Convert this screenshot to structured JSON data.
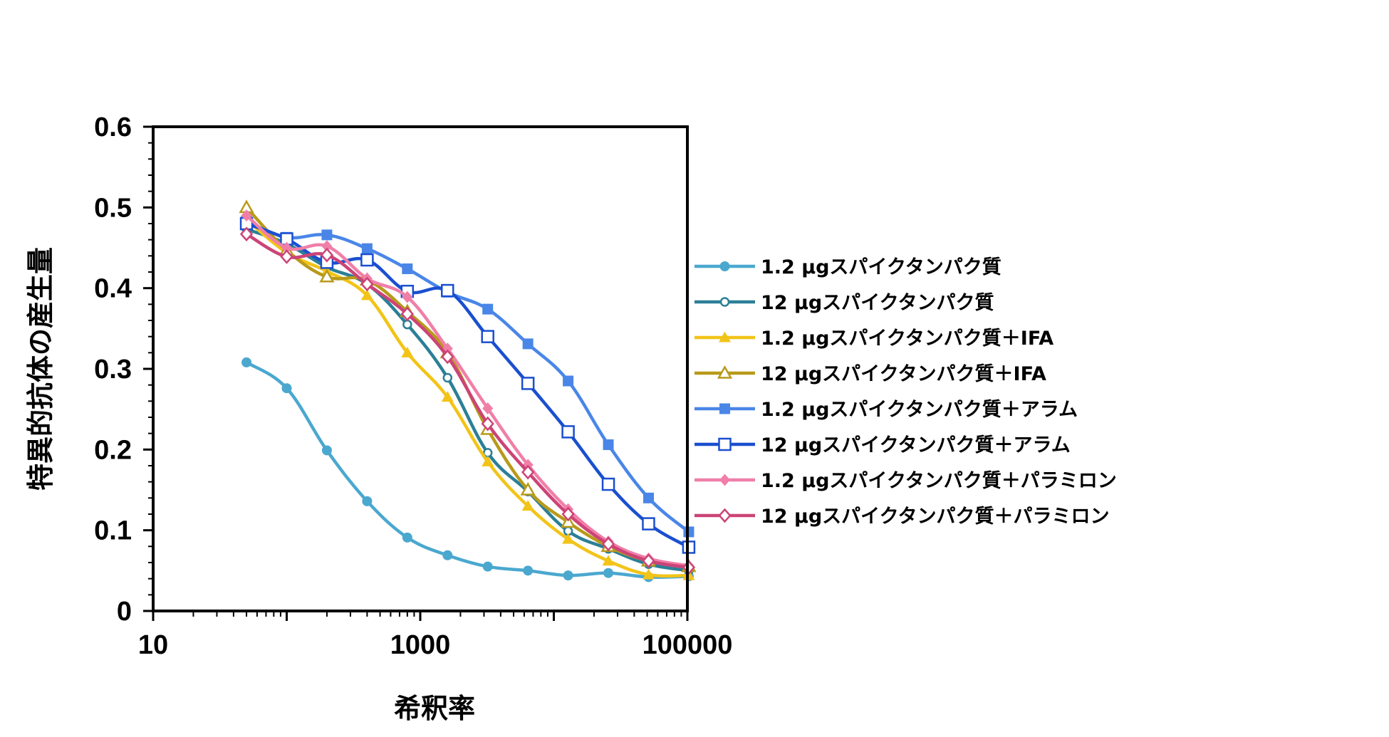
{
  "chart_data": {
    "type": "line",
    "xscale": "log",
    "xlim": [
      10,
      100000
    ],
    "ylim": [
      0,
      0.6
    ],
    "xticks": [
      "10",
      "1000",
      "100000"
    ],
    "yticks": [
      "0",
      "0.1",
      "0.2",
      "0.3",
      "0.4",
      "0.5",
      "0.6"
    ],
    "xlabel": "希釈率",
    "ylabel": "特異的抗体の産生量",
    "legend_position": "right",
    "grid": false,
    "x": [
      50,
      100,
      200,
      400,
      800,
      1600,
      3200,
      6400,
      12800,
      25600,
      51200,
      102400
    ],
    "series": [
      {
        "name": "1.2 µgスパイクタンパク質",
        "color": "#4aa8cf",
        "marker": "circle-filled",
        "values": [
          0.308,
          0.276,
          0.199,
          0.136,
          0.091,
          0.069,
          0.055,
          0.05,
          0.044,
          0.047,
          0.042,
          0.043
        ]
      },
      {
        "name": "12 µgスパイクタンパク質",
        "color": "#2b7f96",
        "marker": "circle-open",
        "values": [
          0.473,
          0.455,
          0.426,
          0.405,
          0.355,
          0.289,
          0.196,
          0.148,
          0.099,
          0.077,
          0.058,
          0.05
        ]
      },
      {
        "name": "1.2 µgスパイクタンパク質＋IFA",
        "color": "#f2c418",
        "marker": "triangle-filled",
        "values": [
          0.485,
          0.444,
          0.421,
          0.391,
          0.32,
          0.265,
          0.185,
          0.13,
          0.089,
          0.062,
          0.045,
          0.044
        ]
      },
      {
        "name": "12 µgスパイクタンパク質＋IFA",
        "color": "#b89a1a",
        "marker": "triangle-open",
        "values": [
          0.5,
          0.447,
          0.414,
          0.41,
          0.371,
          0.32,
          0.225,
          0.15,
          0.11,
          0.08,
          0.062,
          0.055
        ]
      },
      {
        "name": "1.2 µgスパイクタンパク質＋アラム",
        "color": "#4a86e8",
        "marker": "square-filled",
        "values": [
          0.483,
          0.463,
          0.466,
          0.449,
          0.424,
          0.395,
          0.374,
          0.331,
          0.285,
          0.206,
          0.14,
          0.098
        ]
      },
      {
        "name": "12 µgスパイクタンパク質＋アラム",
        "color": "#1a4fcf",
        "marker": "square-open",
        "values": [
          0.48,
          0.461,
          0.432,
          0.435,
          0.396,
          0.397,
          0.34,
          0.282,
          0.222,
          0.157,
          0.108,
          0.079
        ]
      },
      {
        "name": "1.2 µgスパイクタンパク質＋パラミロン",
        "color": "#f07fa8",
        "marker": "diamond-filled",
        "values": [
          0.49,
          0.45,
          0.452,
          0.412,
          0.389,
          0.325,
          0.251,
          0.181,
          0.126,
          0.086,
          0.065,
          0.056
        ]
      },
      {
        "name": "12 µgスパイクタンパク質＋パラミロン",
        "color": "#cc4477",
        "marker": "diamond-open",
        "values": [
          0.467,
          0.439,
          0.441,
          0.405,
          0.368,
          0.315,
          0.232,
          0.172,
          0.12,
          0.083,
          0.062,
          0.054
        ]
      }
    ]
  }
}
